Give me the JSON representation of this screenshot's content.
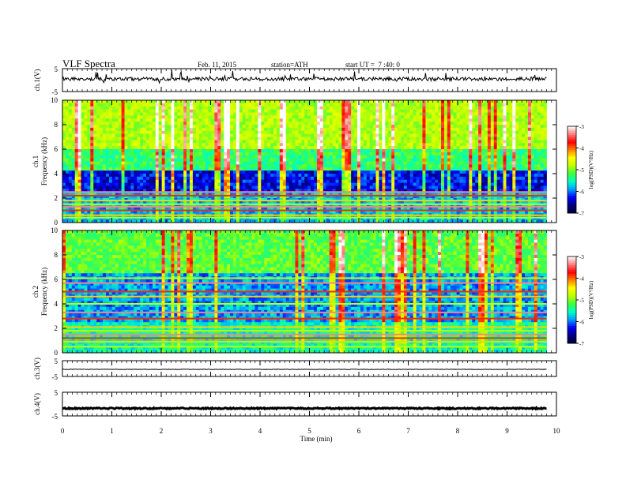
{
  "header": {
    "title": "VLF Spectra",
    "date": "Feb. 11, 2015",
    "station": "station=ATH",
    "start_ut": "start UT =  7 :40: 0"
  },
  "chart_data": [
    {
      "type": "line",
      "name": "ch1-waveform",
      "ylabel": "ch.1(V)",
      "ylim": [
        -5,
        5
      ],
      "yticks": [
        "5",
        "-5"
      ],
      "baseline": 0.5,
      "amplitude": 0.8,
      "xlim": [
        0,
        10
      ]
    },
    {
      "type": "heatmap",
      "name": "ch1-spectrogram",
      "ylabel_top": "ch.1",
      "ylabel": "Frequency (kHz)",
      "ylim": [
        0,
        10
      ],
      "yticks": [
        "0",
        "2",
        "4",
        "6",
        "8",
        "10"
      ],
      "xlim": [
        0,
        10
      ],
      "data_end_min": 9.8,
      "colorbar": {
        "label": "log(PSD)(V²/Hz)",
        "range": [
          -7,
          -3
        ],
        "ticks": [
          "-3",
          "-4",
          "-5",
          "-6",
          "-7"
        ]
      },
      "bands_kHz": [
        0.4,
        0.6,
        1.0,
        1.3,
        1.5,
        1.8,
        2.2,
        2.5
      ],
      "hiss_level": "high above 4 kHz, dark 2.5-4.5 kHz"
    },
    {
      "type": "heatmap",
      "name": "ch2-spectrogram",
      "ylabel_top": "ch.2",
      "ylabel": "Frequency (kHz)",
      "ylim": [
        0,
        10
      ],
      "yticks": [
        "0",
        "2",
        "4",
        "6",
        "8",
        "10"
      ],
      "xlim": [
        0,
        10
      ],
      "data_end_min": 9.8,
      "colorbar": {
        "label": "log(PSD)(V²/Hz)",
        "range": [
          -7,
          -3
        ],
        "ticks": [
          "-3",
          "-4",
          "-5",
          "-6",
          "-7"
        ]
      },
      "bands_kHz": [
        0.5,
        0.9,
        1.2,
        1.5,
        1.8,
        2.1,
        2.8,
        3.3,
        4.0,
        4.6,
        5.0,
        5.7,
        6.1
      ],
      "hiss_level": "moderate"
    },
    {
      "type": "line",
      "name": "ch3-waveform",
      "ylabel": "ch.3(V)",
      "ylim": [
        -5,
        5
      ],
      "yticks": [
        "5",
        "-5"
      ],
      "baseline": -0.5,
      "amplitude": 0.15,
      "xlim": [
        0,
        10
      ]
    },
    {
      "type": "line",
      "name": "ch4-waveform",
      "ylabel": "ch.4(V)",
      "ylim": [
        -5,
        5
      ],
      "yticks": [
        "5",
        "-5"
      ],
      "baseline": -1.8,
      "amplitude": 0.25,
      "xlim": [
        0,
        10
      ]
    }
  ],
  "xaxis": {
    "label": "Time (min)",
    "ticks": [
      "0",
      "1",
      "2",
      "3",
      "4",
      "5",
      "6",
      "7",
      "8",
      "9",
      "10"
    ]
  },
  "colors": {
    "axis": "#000000",
    "colormap": [
      "#000033",
      "#000080",
      "#0000ff",
      "#00a0ff",
      "#00ffc0",
      "#40ff40",
      "#c0ff00",
      "#ffff00",
      "#ff8000",
      "#ff0000",
      "#ff8080",
      "#ffffff"
    ]
  }
}
